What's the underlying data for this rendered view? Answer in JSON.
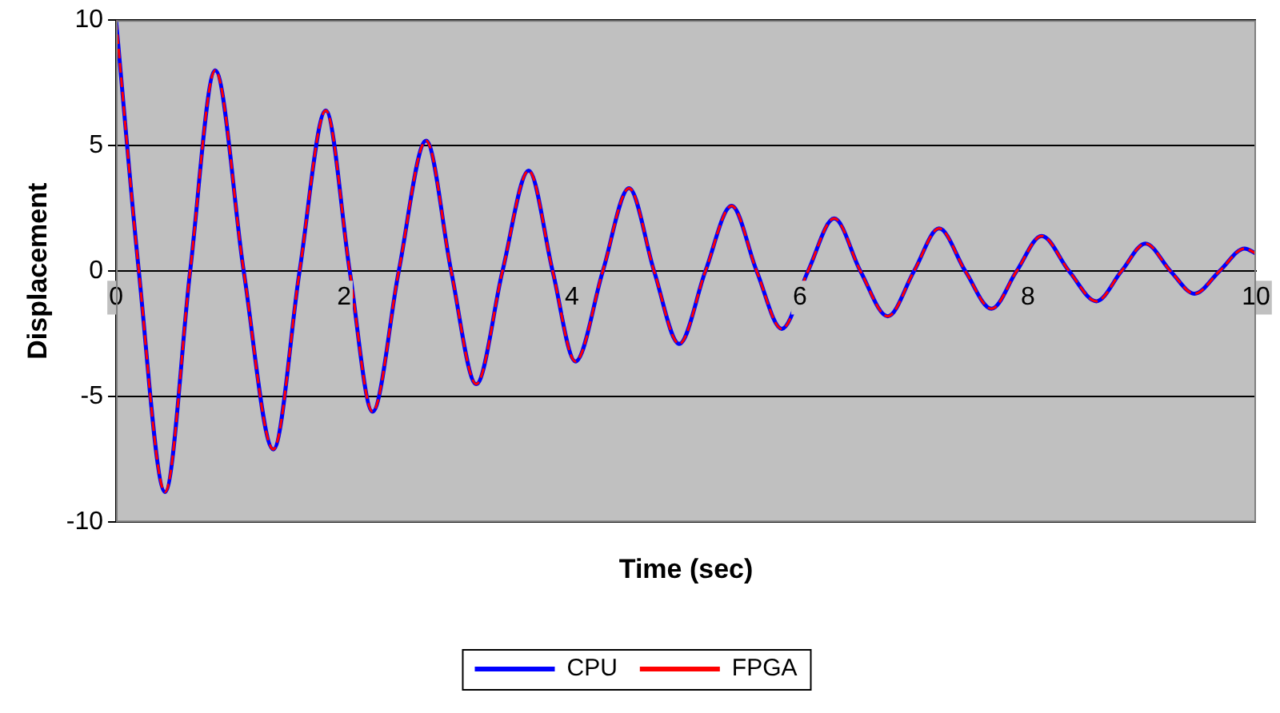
{
  "chart_data": {
    "type": "line",
    "xlabel": "Time (sec)",
    "ylabel": "Displacement",
    "x": [
      0,
      0.2,
      0.43,
      0.65,
      0.87,
      1.12,
      1.38,
      1.61,
      1.84,
      2.05,
      2.25,
      2.48,
      2.72,
      2.94,
      3.16,
      3.39,
      3.62,
      3.83,
      4.03,
      4.27,
      4.5,
      4.72,
      4.94,
      5.17,
      5.4,
      5.62,
      5.84,
      6.07,
      6.3,
      6.53,
      6.77,
      7.0,
      7.22,
      7.45,
      7.68,
      7.9,
      8.12,
      8.36,
      8.6,
      8.82,
      9.03,
      9.25,
      9.46,
      9.68,
      9.9,
      10
    ],
    "series": [
      {
        "name": "CPU",
        "color": "#0000ff",
        "line_style": "solid",
        "values": [
          10,
          0,
          -8.8,
          0,
          8.0,
          0,
          -7.1,
          0,
          6.4,
          0,
          -5.6,
          0,
          5.2,
          0,
          -4.5,
          0,
          4.0,
          0,
          -3.6,
          0,
          3.3,
          0,
          -2.9,
          0,
          2.6,
          0,
          -2.3,
          0,
          2.1,
          0,
          -1.8,
          0,
          1.7,
          0,
          -1.5,
          0,
          1.4,
          0,
          -1.2,
          0,
          1.1,
          0,
          -0.9,
          0,
          0.9,
          0.7
        ]
      },
      {
        "name": "FPGA",
        "color": "#ff0000",
        "line_style": "dashed",
        "values": [
          10,
          0,
          -8.8,
          0,
          8.0,
          0,
          -7.1,
          0,
          6.4,
          0,
          -5.6,
          0,
          5.2,
          0,
          -4.5,
          0,
          4.0,
          0,
          -3.6,
          0,
          3.3,
          0,
          -2.9,
          0,
          2.6,
          0,
          -2.3,
          0,
          2.1,
          0,
          -1.8,
          0,
          1.7,
          0,
          -1.5,
          0,
          1.4,
          0,
          -1.2,
          0,
          1.1,
          0,
          -0.9,
          0,
          0.9,
          0.7
        ]
      }
    ],
    "xlim": [
      0,
      10
    ],
    "xticks": [
      0,
      2,
      4,
      6,
      8,
      10
    ],
    "ylim": [
      -10,
      10
    ],
    "yticks": [
      -10,
      -5,
      0,
      5,
      10
    ],
    "grid": "y",
    "legend": "bottom",
    "marker": "none"
  }
}
